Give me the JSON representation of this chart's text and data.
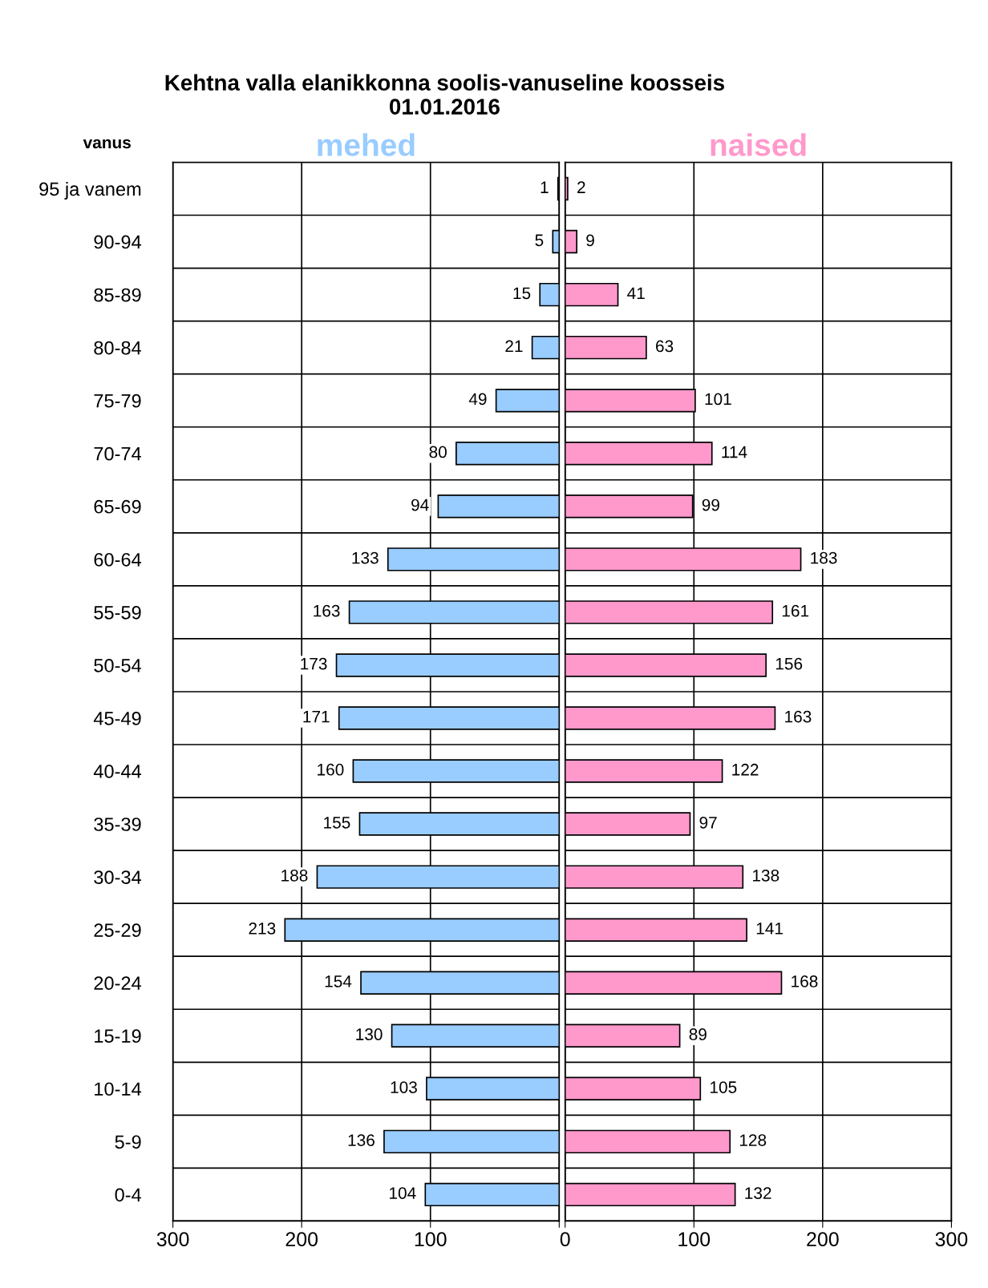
{
  "chart_data": [
    {
      "type": "bar",
      "orientation": "horizontal",
      "title": "Kehtna valla elanikkonna soolis-vanuseline koosseis\n01.01.2016",
      "ylabel": "vanus",
      "categories": [
        "95 ja vanem",
        "90-94",
        "85-89",
        "80-84",
        "75-79",
        "70-74",
        "65-69",
        "60-64",
        "55-59",
        "50-54",
        "45-49",
        "40-44",
        "35-39",
        "30-34",
        "25-29",
        "20-24",
        "15-19",
        "10-14",
        "5-9",
        "0-4"
      ],
      "series": [
        {
          "name": "mehed",
          "color": "#99ccff",
          "values": [
            1,
            5,
            15,
            21,
            49,
            80,
            94,
            133,
            163,
            173,
            171,
            160,
            155,
            188,
            213,
            154,
            130,
            103,
            136,
            104
          ]
        }
      ],
      "xlim": [
        300,
        0
      ],
      "xticks": [
        300,
        200,
        100,
        {
          "value": 0,
          "label": null
        }
      ],
      "grid": true,
      "data_labels": true,
      "legend": "top"
    },
    {
      "type": "bar",
      "orientation": "horizontal",
      "categories": [
        null,
        null,
        null,
        null,
        null,
        null,
        null,
        null,
        null,
        null,
        null,
        null,
        null,
        null,
        null,
        null,
        null,
        null,
        null,
        null
      ],
      "series": [
        {
          "name": "naised",
          "color": "#ff99cc",
          "values": [
            2,
            9,
            41,
            63,
            101,
            114,
            99,
            183,
            161,
            156,
            163,
            122,
            97,
            138,
            141,
            168,
            89,
            105,
            128,
            132
          ]
        }
      ],
      "xlim": [
        0,
        300
      ],
      "xticks": [
        0,
        100,
        200,
        300
      ],
      "grid": true,
      "data_labels": true,
      "legend": "top",
      "tick_labels": "x"
    }
  ]
}
